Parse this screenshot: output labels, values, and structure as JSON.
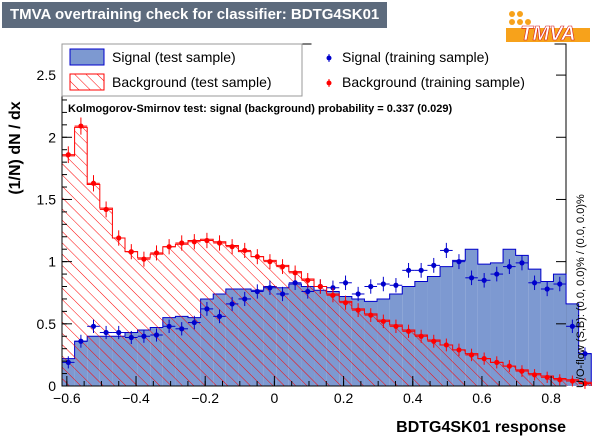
{
  "header": {
    "title": "TMVA overtraining check for classifier: BDTG4SK01",
    "logo_text": "TMVA"
  },
  "colors": {
    "signal_fill": "#7d99d1",
    "signal_line": "#0000cc",
    "background_line": "#ff0000",
    "title_bg": "#5d6b7d",
    "logo_orange": "#f7a21b"
  },
  "legend": {
    "signal_test": "Signal (test sample)",
    "background_test": "Background (test sample)",
    "signal_train": "Signal (training sample)",
    "background_train": "Background (training sample)"
  },
  "ks_text": "Kolmogorov-Smirnov test: signal (background) probability = 0.337 (0.029)",
  "overflow_text": "U/O-flow (S,B): (0.0, 0.0)% / (0.0, 0.0)%",
  "chart_data": {
    "type": "histogram",
    "xlabel": "BDTG4SK01 response",
    "ylabel": "(1/N) dN / dx",
    "xlim": [
      -0.614,
      0.843
    ],
    "ylim": [
      0,
      2.75
    ],
    "xticks": [
      -0.6,
      -0.4,
      -0.2,
      0,
      0.2,
      0.4,
      0.6,
      0.8
    ],
    "xtick_labels": [
      "−0.6",
      "−0.4",
      "−0.2",
      "0",
      "0.2",
      "0.4",
      "0.6",
      "0.8"
    ],
    "yticks": [
      0,
      0.5,
      1,
      1.5,
      2,
      2.5
    ],
    "ytick_labels": [
      "0",
      "0.5",
      "1",
      "1.5",
      "2",
      "2.5"
    ],
    "legend_position": "top",
    "bin_start": -0.614,
    "bin_width": 0.03643,
    "series": [
      {
        "name": "Signal (test sample)",
        "style": "filled-histogram",
        "values": [
          0.22,
          0.36,
          0.4,
          0.4,
          0.4,
          0.43,
          0.45,
          0.47,
          0.55,
          0.56,
          0.55,
          0.7,
          0.74,
          0.78,
          0.78,
          0.77,
          0.8,
          0.79,
          0.82,
          0.8,
          0.77,
          0.76,
          0.72,
          0.7,
          0.68,
          0.7,
          0.74,
          0.8,
          0.84,
          0.88,
          0.96,
          1.01,
          1.1,
          0.98,
          0.99,
          1.1,
          1.05,
          0.94,
          0.84,
          0.9,
          0.66,
          0.26
        ]
      },
      {
        "name": "Background (test sample)",
        "style": "hatched-histogram",
        "values": [
          1.85,
          2.08,
          1.62,
          1.43,
          1.19,
          1.08,
          1.03,
          1.06,
          1.12,
          1.14,
          1.17,
          1.18,
          1.16,
          1.13,
          1.08,
          1.04,
          1.01,
          0.97,
          0.92,
          0.86,
          0.8,
          0.74,
          0.68,
          0.62,
          0.58,
          0.53,
          0.49,
          0.45,
          0.41,
          0.37,
          0.33,
          0.29,
          0.26,
          0.22,
          0.19,
          0.16,
          0.13,
          0.1,
          0.08,
          0.06,
          0.05,
          0.03
        ]
      },
      {
        "name": "Signal (training sample)",
        "style": "points",
        "values": [
          0.19,
          0.36,
          0.48,
          0.43,
          0.43,
          0.39,
          0.4,
          0.41,
          0.48,
          0.46,
          0.51,
          0.62,
          0.56,
          0.66,
          0.7,
          0.76,
          0.79,
          0.74,
          0.83,
          0.76,
          0.8,
          0.79,
          0.83,
          0.74,
          0.8,
          0.82,
          0.81,
          0.93,
          0.93,
          0.97,
          1.09,
          1.0,
          0.87,
          0.85,
          0.9,
          0.96,
          0.99,
          0.83,
          0.78,
          0.82,
          0.48,
          0.26
        ]
      },
      {
        "name": "Background (training sample)",
        "style": "points",
        "values": [
          1.86,
          2.09,
          1.63,
          1.42,
          1.19,
          1.08,
          1.02,
          1.07,
          1.12,
          1.15,
          1.16,
          1.17,
          1.15,
          1.12,
          1.09,
          1.04,
          1.0,
          0.96,
          0.91,
          0.85,
          0.8,
          0.73,
          0.67,
          0.61,
          0.57,
          0.52,
          0.48,
          0.44,
          0.4,
          0.36,
          0.33,
          0.29,
          0.25,
          0.22,
          0.19,
          0.16,
          0.12,
          0.09,
          0.07,
          0.05,
          0.04,
          0.02
        ]
      }
    ]
  }
}
